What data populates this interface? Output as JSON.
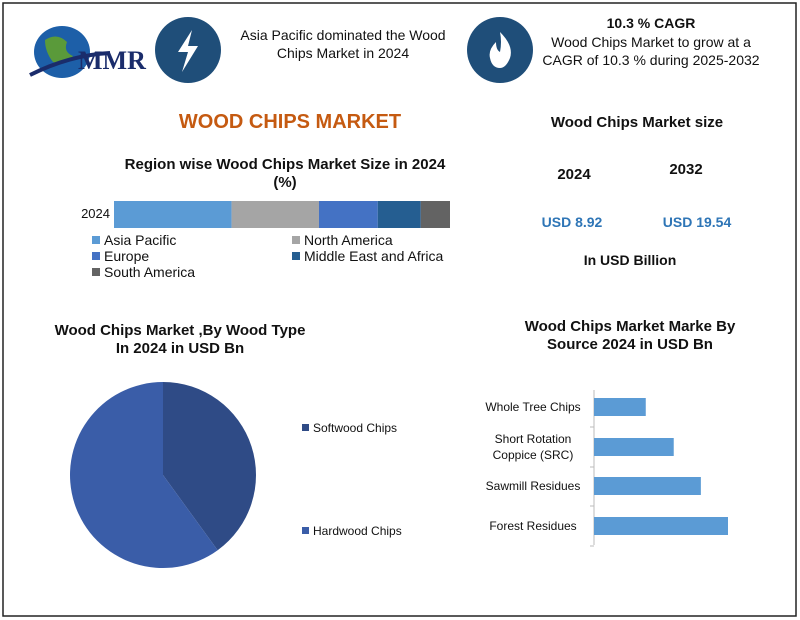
{
  "header": {
    "logo": "MMR",
    "fact1": "Asia Pacific dominated the Wood Chips Market in 2024",
    "fact2_title": "10.3 % CAGR",
    "fact2": "Wood Chips Market to grow at a CAGR of 10.3 % during 2025-2032"
  },
  "title": "WOOD CHIPS MARKET",
  "market_size": {
    "title": "Wood Chips Market size",
    "years": [
      "2024",
      "2032"
    ],
    "values": [
      "USD 8.92",
      "USD 19.54"
    ],
    "unit": "In USD Billion"
  },
  "chart_data": [
    {
      "type": "stacked-hbar",
      "title": "Region wise Wood Chips Market Size in 2024 (%)",
      "categories": [
        "2024"
      ],
      "series": [
        {
          "name": "Asia Pacific",
          "color": "#5b9bd5",
          "values": [
            35
          ]
        },
        {
          "name": "North America",
          "color": "#a5a5a5",
          "values": [
            26
          ]
        },
        {
          "name": "Europe",
          "color": "#4472c4",
          "values": [
            17.5
          ]
        },
        {
          "name": "Middle East and Africa",
          "color": "#255e91",
          "values": [
            12.8
          ]
        },
        {
          "name": "South America",
          "color": "#636363",
          "values": [
            8.7
          ]
        }
      ]
    },
    {
      "type": "pie",
      "title": "Wood Chips Market ,By Wood Type In 2024 in USD Bn",
      "categories": [
        "Softwood Chips",
        "Hardwood Chips"
      ],
      "values": [
        40,
        60
      ],
      "colors": [
        "#2f4b86",
        "#3a5da8"
      ]
    },
    {
      "type": "hbar",
      "title": "Wood Chips Market Marke By Source 2024 in USD Bn",
      "categories": [
        "Whole Tree Chips",
        "Short Rotation Coppice (SRC)",
        "Sawmill Residues",
        "Forest Residues"
      ],
      "values": [
        1.24,
        1.91,
        2.56,
        3.21
      ],
      "color": "#5b9bd5"
    }
  ]
}
